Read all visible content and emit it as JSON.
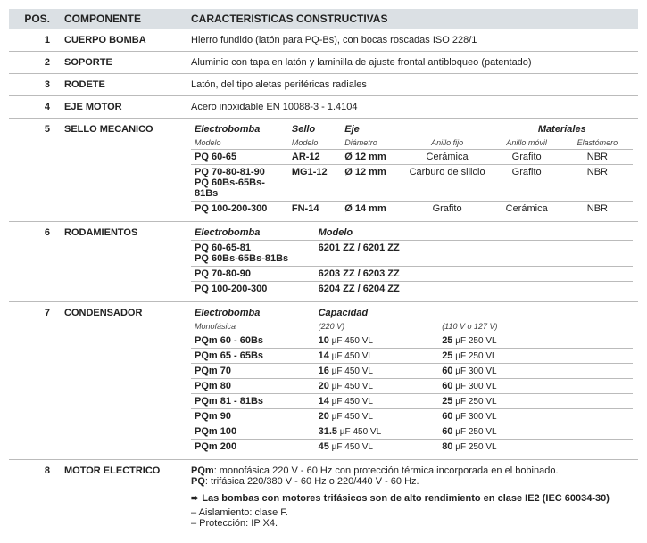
{
  "header": {
    "pos": "POS.",
    "comp": "COMPONENTE",
    "car": "CARACTERISTICAS CONSTRUCTIVAS"
  },
  "r1": {
    "n": "1",
    "c": "CUERPO BOMBA",
    "t": "Hierro fundido (latón para PQ-Bs), con bocas roscadas ISO 228/1"
  },
  "r2": {
    "n": "2",
    "c": "SOPORTE",
    "t": "Aluminio con tapa en latón y laminilla de ajuste frontal antibloqueo (patentado)"
  },
  "r3": {
    "n": "3",
    "c": "RODETE",
    "t": "Latón, del tipo aletas periféricas radiales"
  },
  "r4": {
    "n": "4",
    "c": "EJE MOTOR",
    "t": "Acero inoxidable EN 10088-3 - 1.4104"
  },
  "r5": {
    "n": "5",
    "c": "SELLO MECANICO",
    "h": {
      "a": "Electrobomba",
      "b": "Sello",
      "c": "Eje",
      "d": "Materiales"
    },
    "sh": {
      "a": "Modelo",
      "b": "Modelo",
      "c": "Diámetro",
      "d": "Anillo fijo",
      "e": "Anillo móvil",
      "f": "Elastómero"
    },
    "rows": [
      {
        "m": "PQ 60-65",
        "s": "AR-12",
        "dia": "Ø 12 mm",
        "af": "Cerámica",
        "am": "Grafito",
        "el": "NBR"
      },
      {
        "m": "PQ 70-80-81-90",
        "m2": "PQ 60Bs-65Bs-81Bs",
        "s": "MG1-12",
        "dia": "Ø 12 mm",
        "af": "Carburo de silicio",
        "am": "Grafito",
        "el": "NBR"
      },
      {
        "m": "PQ 100-200-300",
        "s": "FN-14",
        "dia": "Ø 14 mm",
        "af": "Grafito",
        "am": "Cerámica",
        "el": "NBR"
      }
    ]
  },
  "r6": {
    "n": "6",
    "c": "RODAMIENTOS",
    "h": {
      "a": "Electrobomba",
      "b": "Modelo"
    },
    "rows": [
      {
        "m": "PQ 60-65-81",
        "m2": "PQ 60Bs-65Bs-81Bs",
        "v": "6201 ZZ / 6201 ZZ"
      },
      {
        "m": "PQ 70-80-90",
        "v": "6203 ZZ / 6203 ZZ"
      },
      {
        "m": "PQ 100-200-300",
        "v": "6204 ZZ / 6204 ZZ"
      }
    ]
  },
  "r7": {
    "n": "7",
    "c": "CONDENSADOR",
    "h": {
      "a": "Electrobomba",
      "b": "Capacidad"
    },
    "sh": {
      "a": "Monofásica",
      "b": "(220 V)",
      "c": "(110 V o 127 V)"
    },
    "rows": [
      {
        "m": "PQm 60 - 60Bs",
        "c1a": "10",
        "c1b": " µF 450 VL",
        "c2a": "25",
        "c2b": " µF 250 VL"
      },
      {
        "m": "PQm 65 - 65Bs",
        "c1a": "14",
        "c1b": " µF 450 VL",
        "c2a": "25",
        "c2b": " µF 250 VL"
      },
      {
        "m": "PQm 70",
        "c1a": "16",
        "c1b": " µF 450 VL",
        "c2a": "60",
        "c2b": " µF 300 VL"
      },
      {
        "m": "PQm 80",
        "c1a": "20",
        "c1b": " µF 450 VL",
        "c2a": "60",
        "c2b": " µF 300 VL"
      },
      {
        "m": "PQm 81 - 81Bs",
        "c1a": "14",
        "c1b": " µF 450 VL",
        "c2a": "25",
        "c2b": " µF 250 VL"
      },
      {
        "m": "PQm 90",
        "c1a": "20",
        "c1b": " µF 450 VL",
        "c2a": "60",
        "c2b": " µF 300 VL"
      },
      {
        "m": "PQm 100",
        "c1a": "31.5",
        "c1b": " µF 450 VL",
        "c2a": "60",
        "c2b": " µF 250 VL"
      },
      {
        "m": "PQm 200",
        "c1a": "45",
        "c1b": " µF 450 VL",
        "c2a": "80",
        "c2b": " µF 250 VL"
      }
    ]
  },
  "r8": {
    "n": "8",
    "c": "MOTOR ELECTRICO",
    "l1a": "PQm",
    "l1b": ":  monofásica 220 V - 60 Hz con protección térmica incorporada en el bobinado.",
    "l2a": "PQ",
    "l2b": ":    trifásica 220/380 V - 60 Hz o 220/440 V - 60 Hz.",
    "l3": "Las bombas con motores trifásicos son de alto rendimiento en clase IE2 (IEC 60034-30)",
    "l4": "– Aislamiento:  clase F.",
    "l5": "– Protección:   IP X4."
  }
}
